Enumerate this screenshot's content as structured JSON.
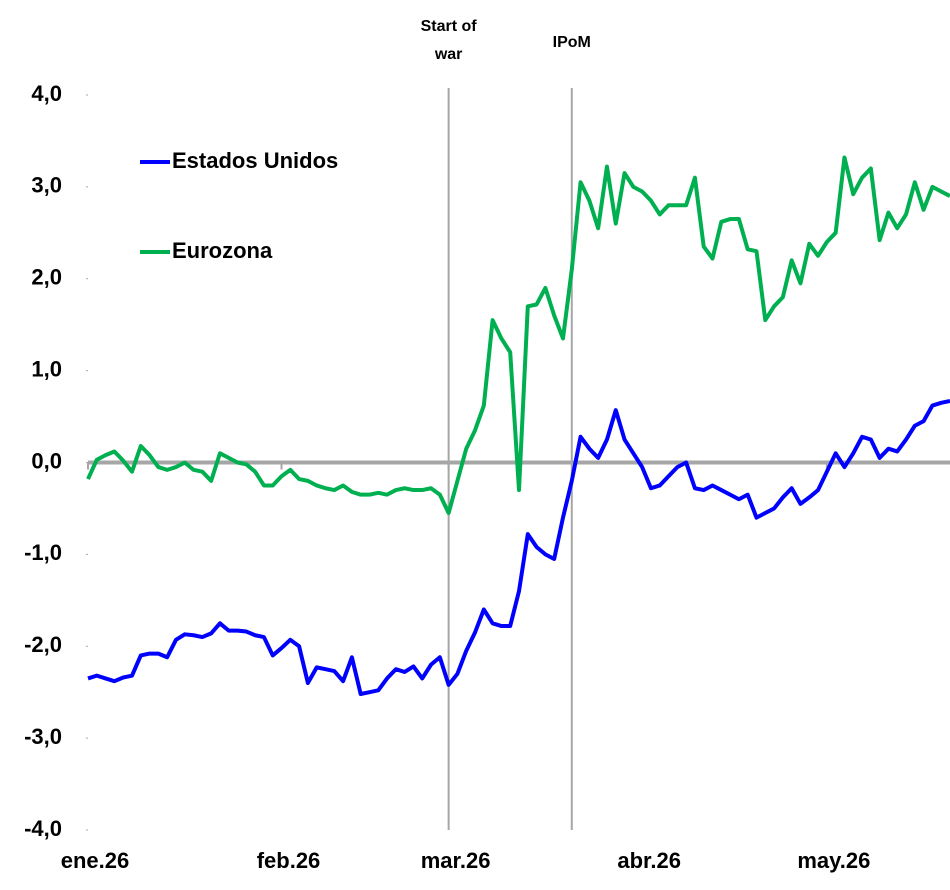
{
  "chart_data": {
    "type": "line",
    "categories": [
      "ene.26",
      null,
      null,
      null,
      null,
      null,
      null,
      null,
      null,
      null,
      null,
      null,
      null,
      null,
      null,
      null,
      null,
      null,
      null,
      null,
      null,
      null,
      "feb.26",
      null,
      null,
      null,
      null,
      null,
      null,
      null,
      null,
      null,
      null,
      null,
      null,
      null,
      null,
      null,
      null,
      null,
      null,
      "mar.26",
      null,
      null,
      null,
      null,
      null,
      null,
      null,
      null,
      null,
      null,
      null,
      null,
      null,
      null,
      null,
      null,
      null,
      null,
      null,
      null,
      null,
      "abr.26",
      null,
      null,
      null,
      null,
      null,
      null,
      null,
      null,
      null,
      null,
      null,
      null,
      null,
      null,
      null,
      null,
      null,
      null,
      null,
      null,
      "may.26",
      null,
      null,
      null,
      null,
      null,
      null,
      null,
      null,
      null,
      null,
      null,
      null,
      null,
      null
    ],
    "series": [
      {
        "name": "Estados Unidos",
        "color": "#0000ff",
        "values": [
          -2.35,
          -2.32,
          -2.35,
          -2.38,
          -2.34,
          -2.32,
          -2.1,
          -2.08,
          -2.08,
          -2.12,
          -1.93,
          -1.87,
          -1.88,
          -1.9,
          -1.86,
          -1.75,
          -1.83,
          -1.83,
          -1.84,
          -1.88,
          -1.9,
          -2.1,
          -2.02,
          -1.93,
          -2.0,
          -2.4,
          -2.23,
          -2.25,
          -2.27,
          -2.38,
          -2.12,
          -2.52,
          -2.5,
          -2.48,
          -2.35,
          -2.25,
          -2.28,
          -2.22,
          -2.35,
          -2.2,
          -2.12,
          -2.42,
          -2.3,
          -2.05,
          -1.85,
          -1.6,
          -1.75,
          -1.78,
          -1.78,
          -1.4,
          -0.78,
          -0.92,
          -1.0,
          -1.05,
          -0.6,
          -0.2,
          0.28,
          0.15,
          0.05,
          0.25,
          0.57,
          0.25,
          0.1,
          -0.05,
          -0.28,
          -0.25,
          -0.15,
          -0.05,
          0.0,
          -0.28,
          -0.3,
          -0.25,
          -0.3,
          -0.35,
          -0.4,
          -0.35,
          -0.6,
          -0.55,
          -0.5,
          -0.38,
          -0.28,
          -0.45,
          -0.38,
          -0.3,
          -0.1,
          0.1,
          -0.05,
          0.1,
          0.28,
          0.25,
          0.05,
          0.15,
          0.12,
          0.25,
          0.4,
          0.45,
          0.62,
          0.65,
          0.67
        ]
      },
      {
        "name": "Eurozona",
        "color": "#00b050",
        "values": [
          -0.18,
          0.03,
          0.08,
          0.12,
          0.02,
          -0.1,
          0.18,
          0.08,
          -0.05,
          -0.08,
          -0.05,
          0.0,
          -0.08,
          -0.1,
          -0.2,
          0.1,
          0.05,
          0.0,
          -0.02,
          -0.1,
          -0.25,
          -0.25,
          -0.15,
          -0.08,
          -0.18,
          -0.2,
          -0.25,
          -0.28,
          -0.3,
          -0.25,
          -0.32,
          -0.35,
          -0.35,
          -0.33,
          -0.35,
          -0.3,
          -0.28,
          -0.3,
          -0.3,
          -0.28,
          -0.35,
          -0.55,
          -0.2,
          0.15,
          0.35,
          0.62,
          1.55,
          1.35,
          1.2,
          -0.3,
          1.7,
          1.72,
          1.9,
          1.6,
          1.35,
          2.1,
          3.05,
          2.85,
          2.55,
          3.22,
          2.6,
          3.15,
          3.0,
          2.95,
          2.85,
          2.7,
          2.8,
          2.8,
          2.8,
          3.1,
          2.35,
          2.22,
          2.62,
          2.65,
          2.65,
          2.32,
          2.3,
          1.55,
          1.7,
          1.8,
          2.2,
          1.95,
          2.38,
          2.25,
          2.4,
          2.5,
          3.32,
          2.92,
          3.1,
          3.2,
          2.42,
          2.72,
          2.55,
          2.7,
          3.05,
          2.75,
          3.0,
          2.95,
          2.9
        ]
      }
    ],
    "ylim": [
      -4,
      4
    ],
    "yticks": [
      {
        "value": -4,
        "label": "-4,0"
      },
      {
        "value": -3,
        "label": "-3,0"
      },
      {
        "value": -2,
        "label": "-2,0"
      },
      {
        "value": -1,
        "label": "-1,0"
      },
      {
        "value": 0,
        "label": "0,0"
      },
      {
        "value": 1,
        "label": "1,0"
      },
      {
        "value": 2,
        "label": "2,0"
      },
      {
        "value": 3,
        "label": "3,0"
      },
      {
        "value": 4,
        "label": "4,0"
      }
    ],
    "annotations": [
      {
        "lines": [
          "Start of",
          "war"
        ]
      },
      {
        "lines": [
          "IPoM"
        ]
      }
    ]
  }
}
